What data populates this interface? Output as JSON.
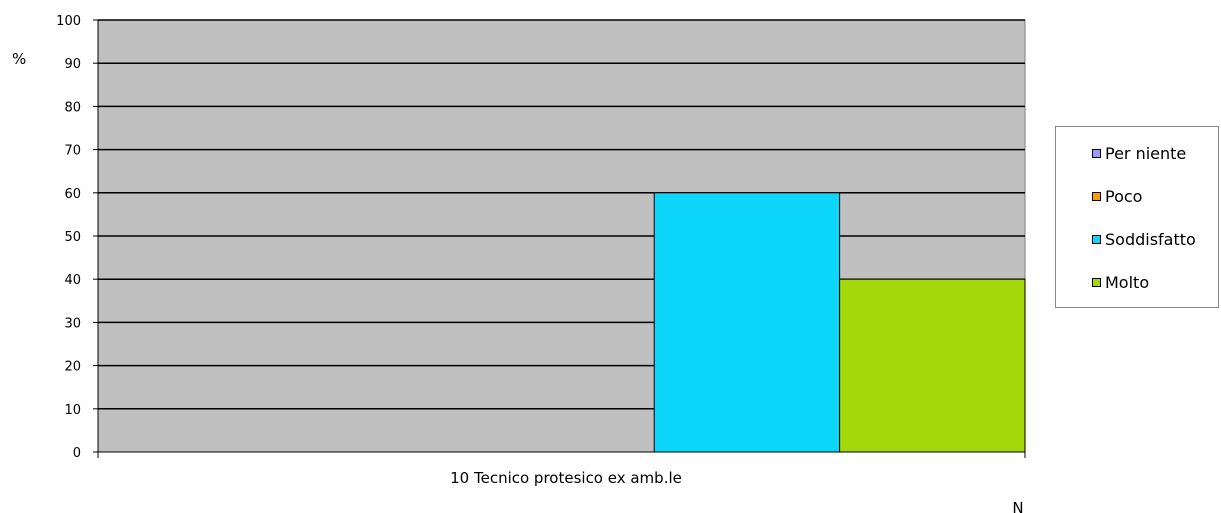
{
  "chart_data": {
    "type": "bar",
    "title": "",
    "xlabel": "10 Tecnico protesico ex amb.le",
    "ylabel": "%",
    "corner_label": "N",
    "categories": [
      "10 Tecnico protesico ex amb.le"
    ],
    "ylim": [
      0,
      100
    ],
    "yticks": [
      0,
      10,
      20,
      30,
      40,
      50,
      60,
      70,
      80,
      90,
      100
    ],
    "grid": true,
    "legend_position": "right",
    "plot_background": "#c0c0c0",
    "series": [
      {
        "name": "Per niente",
        "color": "#9999ff",
        "values": [
          0
        ]
      },
      {
        "name": "Poco",
        "color": "#ff9900",
        "values": [
          0
        ]
      },
      {
        "name": "Soddisfatto",
        "color": "#0cd6fa",
        "values": [
          60
        ]
      },
      {
        "name": "Molto",
        "color": "#a5d80a",
        "values": [
          40
        ]
      }
    ]
  }
}
